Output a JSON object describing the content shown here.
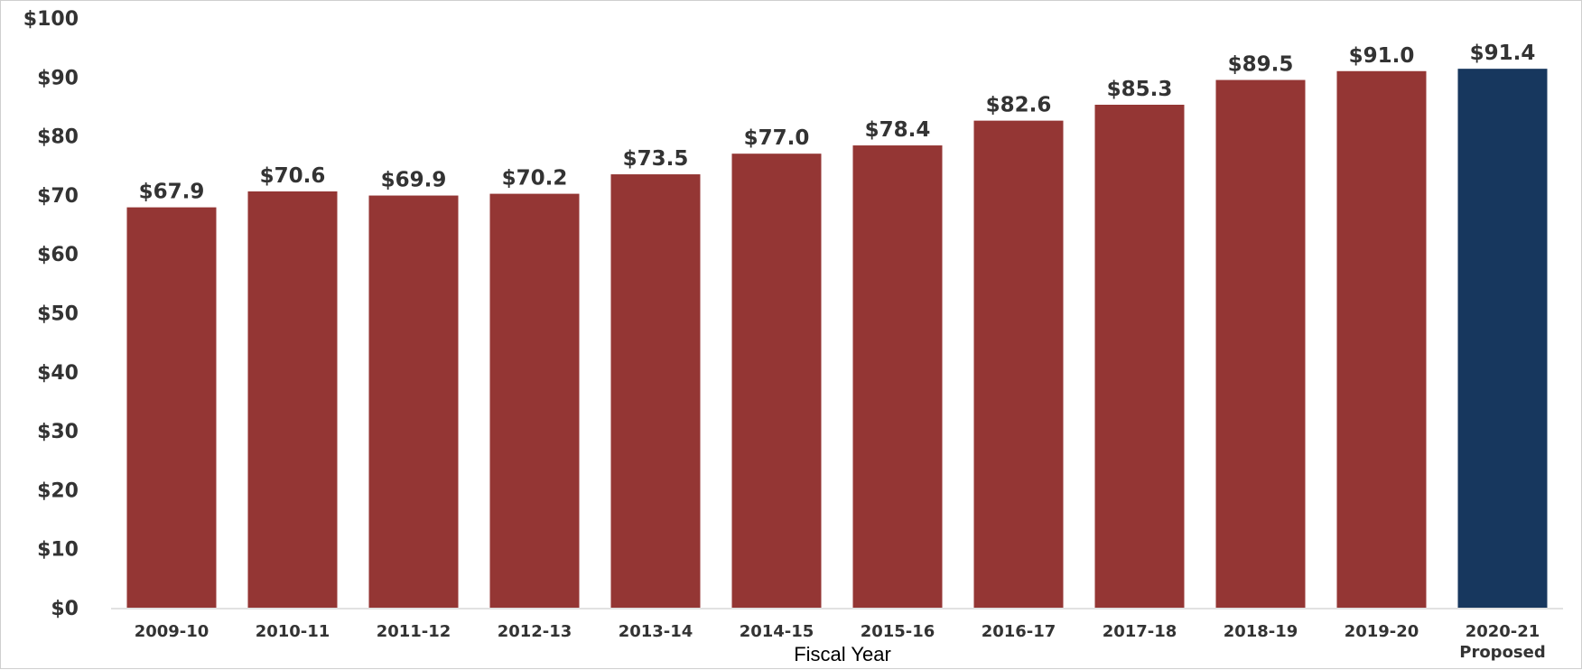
{
  "chart_data": {
    "type": "bar",
    "title": "",
    "xlabel": "Fiscal Year",
    "ylabel": "",
    "ylim": [
      0,
      100
    ],
    "y_ticks": [
      0,
      10,
      20,
      30,
      40,
      50,
      60,
      70,
      80,
      90,
      100
    ],
    "y_tick_labels": [
      "$0",
      "$10",
      "$20",
      "$30",
      "$40",
      "$50",
      "$60",
      "$70",
      "$80",
      "$90",
      "$100"
    ],
    "categories": [
      "2009-10",
      "2010-11",
      "2011-12",
      "2012-13",
      "2013-14",
      "2014-15",
      "2015-16",
      "2016-17",
      "2017-18",
      "2018-19",
      "2019-20",
      "2020-21"
    ],
    "category_sublabels": [
      "",
      "",
      "",
      "",
      "",
      "",
      "",
      "",
      "",
      "",
      "",
      "Proposed"
    ],
    "values": [
      67.9,
      70.6,
      69.9,
      70.2,
      73.5,
      77.0,
      78.4,
      82.6,
      85.3,
      89.5,
      91.0,
      91.4
    ],
    "data_labels": [
      "$67.9",
      "$70.6",
      "$69.9",
      "$70.2",
      "$73.5",
      "$77.0",
      "$78.4",
      "$82.6",
      "$85.3",
      "$89.5",
      "$91.0",
      "$91.4"
    ],
    "bar_colors": [
      "#943634",
      "#943634",
      "#943634",
      "#943634",
      "#943634",
      "#943634",
      "#943634",
      "#943634",
      "#943634",
      "#943634",
      "#943634",
      "#17375e"
    ],
    "grid": false,
    "legend": "none"
  }
}
